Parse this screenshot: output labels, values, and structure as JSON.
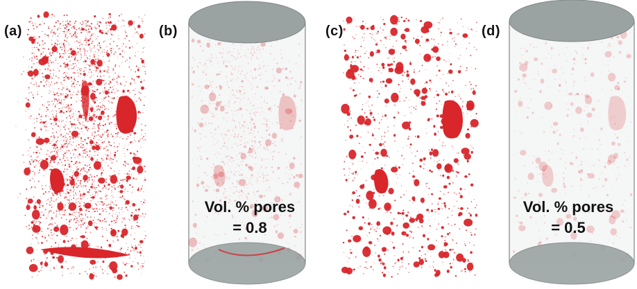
{
  "panels": [
    {
      "label": "(a)"
    },
    {
      "label": "(b)",
      "vol_line1": "Vol. % pores",
      "vol_line2": "= 0.8"
    },
    {
      "label": "(c)"
    },
    {
      "label": "(d)",
      "vol_line1": "Vol. % pores",
      "vol_line2": "= 0.5"
    }
  ],
  "colors": {
    "pore_red": "#d8262b",
    "cylinder_grey": "#9aa2a2",
    "cylinder_edge": "#7f8787"
  }
}
